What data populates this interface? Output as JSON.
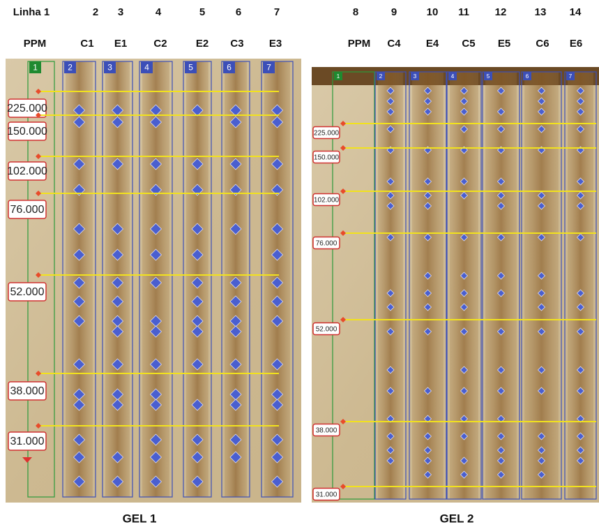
{
  "gels": [
    {
      "lane_numbers": [
        "Linha 1",
        "2",
        "3",
        "4",
        "5",
        "6",
        "7"
      ],
      "samples": [
        "PPM",
        "C1",
        "E1",
        "C2",
        "E2",
        "C3",
        "E3"
      ],
      "lane_boxes": [
        "1",
        "2",
        "3",
        "4",
        "5",
        "6",
        "7"
      ],
      "markers": [
        "225.000",
        "150.000",
        "102.000",
        "76.000",
        "52.000",
        "38.000",
        "31.000"
      ],
      "title": "GEL  1"
    },
    {
      "lane_numbers": [
        "8",
        "9",
        "10",
        "11",
        "12",
        "13",
        "14"
      ],
      "samples": [
        "PPM",
        "C4",
        "E4",
        "C5",
        "E5",
        "C6",
        "E6"
      ],
      "lane_boxes": [
        "1",
        "2",
        "3",
        "4",
        "5",
        "6",
        "7"
      ],
      "markers": [
        "225.000",
        "150.000",
        "102.000",
        "76.000",
        "52.000",
        "38.000",
        "31.000"
      ],
      "title": "GEL  2"
    }
  ]
}
